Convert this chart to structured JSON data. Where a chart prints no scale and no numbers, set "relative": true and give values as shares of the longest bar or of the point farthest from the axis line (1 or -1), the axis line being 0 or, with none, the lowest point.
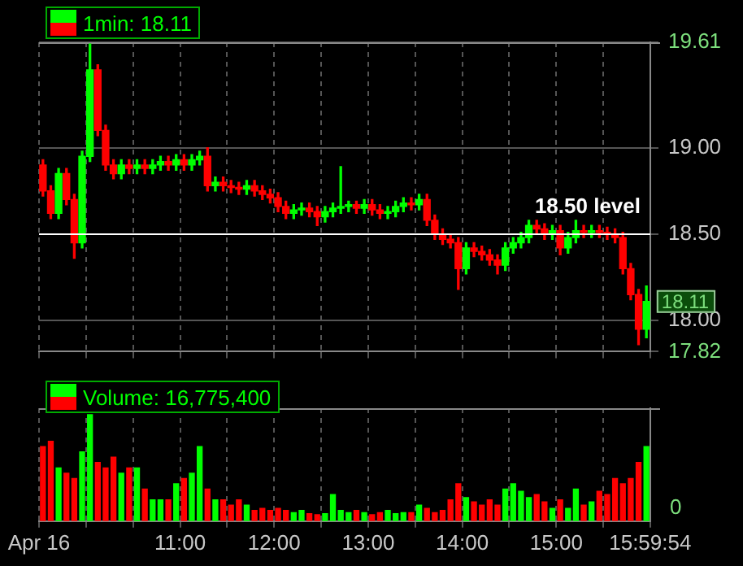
{
  "chart_data": [
    {
      "type": "candlestick",
      "title": "1min: 18.11",
      "x": [
        9.5417,
        9.625,
        9.7083,
        9.7917,
        9.875,
        9.9583,
        10.0417,
        10.125,
        10.2083,
        10.2917,
        10.375,
        10.4583,
        10.5417,
        10.625,
        10.7083,
        10.7917,
        10.875,
        10.9583,
        11.0417,
        11.125,
        11.2083,
        11.2917,
        11.375,
        11.4583,
        11.5417,
        11.625,
        11.7083,
        11.7917,
        11.875,
        11.9583,
        12.0417,
        12.125,
        12.2083,
        12.2917,
        12.375,
        12.4583,
        12.5417,
        12.625,
        12.7083,
        12.7917,
        12.875,
        12.9583,
        13.0417,
        13.125,
        13.2083,
        13.2917,
        13.375,
        13.4583,
        13.5417,
        13.625,
        13.7083,
        13.7917,
        13.875,
        13.9583,
        14.0417,
        14.125,
        14.2083,
        14.2917,
        14.375,
        14.4583,
        14.5417,
        14.625,
        14.7083,
        14.7917,
        14.875,
        14.9583,
        15.0417,
        15.125,
        15.2083,
        15.2917,
        15.375,
        15.4583,
        15.5417,
        15.625,
        15.7083,
        15.7917,
        15.875,
        15.9583
      ],
      "ohlc": [
        [
          18.9,
          18.93,
          18.72,
          18.75
        ],
        [
          18.75,
          18.78,
          18.59,
          18.62
        ],
        [
          18.62,
          18.88,
          18.59,
          18.85
        ],
        [
          18.85,
          18.88,
          18.67,
          18.7
        ],
        [
          18.7,
          18.73,
          18.36,
          18.45
        ],
        [
          18.45,
          18.98,
          18.42,
          18.95
        ],
        [
          18.95,
          19.6,
          18.92,
          19.45
        ],
        [
          19.45,
          19.48,
          19.07,
          19.1
        ],
        [
          19.1,
          19.13,
          18.87,
          18.9
        ],
        [
          18.9,
          18.93,
          18.82,
          18.85
        ],
        [
          18.85,
          18.93,
          18.82,
          18.9
        ],
        [
          18.9,
          18.93,
          18.85,
          18.88
        ],
        [
          18.88,
          18.93,
          18.85,
          18.9
        ],
        [
          18.9,
          18.93,
          18.85,
          18.88
        ],
        [
          18.88,
          18.93,
          18.85,
          18.9
        ],
        [
          18.9,
          18.95,
          18.87,
          18.92
        ],
        [
          18.92,
          18.95,
          18.87,
          18.9
        ],
        [
          18.9,
          18.96,
          18.87,
          18.93
        ],
        [
          18.93,
          18.96,
          18.87,
          18.9
        ],
        [
          18.9,
          18.96,
          18.87,
          18.93
        ],
        [
          18.93,
          18.98,
          18.9,
          18.95
        ],
        [
          18.95,
          19.0,
          18.75,
          18.78
        ],
        [
          18.78,
          18.83,
          18.75,
          18.8
        ],
        [
          18.8,
          18.83,
          18.75,
          18.78
        ],
        [
          18.78,
          18.81,
          18.74,
          18.77
        ],
        [
          18.77,
          18.8,
          18.73,
          18.76
        ],
        [
          18.76,
          18.81,
          18.73,
          18.78
        ],
        [
          18.78,
          18.81,
          18.72,
          18.75
        ],
        [
          18.75,
          18.78,
          18.7,
          18.73
        ],
        [
          18.73,
          18.76,
          18.68,
          18.71
        ],
        [
          18.71,
          18.74,
          18.63,
          18.66
        ],
        [
          18.66,
          18.69,
          18.59,
          18.62
        ],
        [
          18.62,
          18.67,
          18.59,
          18.64
        ],
        [
          18.64,
          18.68,
          18.61,
          18.65
        ],
        [
          18.65,
          18.68,
          18.6,
          18.63
        ],
        [
          18.63,
          18.66,
          18.55,
          18.6
        ],
        [
          18.6,
          18.66,
          18.57,
          18.63
        ],
        [
          18.63,
          18.68,
          18.6,
          18.65
        ],
        [
          18.65,
          18.89,
          18.62,
          18.66
        ],
        [
          18.66,
          18.69,
          18.63,
          18.67
        ],
        [
          18.67,
          18.69,
          18.62,
          18.65
        ],
        [
          18.65,
          18.7,
          18.62,
          18.67
        ],
        [
          18.67,
          18.7,
          18.61,
          18.64
        ],
        [
          18.64,
          18.67,
          18.59,
          18.62
        ],
        [
          18.62,
          18.66,
          18.59,
          18.63
        ],
        [
          18.63,
          18.69,
          18.6,
          18.66
        ],
        [
          18.66,
          18.71,
          18.63,
          18.68
        ],
        [
          18.68,
          18.71,
          18.64,
          18.67
        ],
        [
          18.67,
          18.73,
          18.64,
          18.7
        ],
        [
          18.7,
          18.73,
          18.55,
          18.58
        ],
        [
          18.58,
          18.61,
          18.47,
          18.5
        ],
        [
          18.5,
          18.53,
          18.44,
          18.47
        ],
        [
          18.47,
          18.5,
          18.42,
          18.45
        ],
        [
          18.45,
          18.48,
          18.18,
          18.3
        ],
        [
          18.3,
          18.45,
          18.27,
          18.42
        ],
        [
          18.42,
          18.45,
          18.37,
          18.4
        ],
        [
          18.4,
          18.43,
          18.35,
          18.38
        ],
        [
          18.38,
          18.41,
          18.32,
          18.35
        ],
        [
          18.35,
          18.38,
          18.27,
          18.32
        ],
        [
          18.32,
          18.45,
          18.29,
          18.42
        ],
        [
          18.42,
          18.48,
          18.39,
          18.45
        ],
        [
          18.45,
          18.51,
          18.42,
          18.48
        ],
        [
          18.48,
          18.58,
          18.45,
          18.55
        ],
        [
          18.55,
          18.58,
          18.5,
          18.53
        ],
        [
          18.53,
          18.56,
          18.47,
          18.5
        ],
        [
          18.5,
          18.55,
          18.47,
          18.52
        ],
        [
          18.52,
          18.55,
          18.38,
          18.42
        ],
        [
          18.42,
          18.51,
          18.39,
          18.48
        ],
        [
          18.48,
          18.58,
          18.45,
          18.52
        ],
        [
          18.52,
          18.55,
          18.48,
          18.51
        ],
        [
          18.51,
          18.55,
          18.48,
          18.52
        ],
        [
          18.52,
          18.55,
          18.48,
          18.51
        ],
        [
          18.51,
          18.54,
          18.47,
          18.5
        ],
        [
          18.5,
          18.53,
          18.45,
          18.48
        ],
        [
          18.48,
          18.51,
          18.27,
          18.3
        ],
        [
          18.3,
          18.33,
          18.12,
          18.15
        ],
        [
          18.15,
          18.18,
          17.86,
          17.95
        ],
        [
          17.95,
          18.2,
          17.9,
          18.11
        ]
      ],
      "colors": [
        "#ff0000",
        "#ff0000",
        "#00ff00",
        "#ff0000",
        "#ff0000",
        "#00ff00",
        "#00ff00",
        "#ff0000",
        "#ff0000",
        "#ff0000",
        "#00ff00",
        "#ff0000",
        "#00ff00",
        "#ff0000",
        "#00ff00",
        "#00ff00",
        "#ff0000",
        "#00ff00",
        "#ff0000",
        "#00ff00",
        "#00ff00",
        "#ff0000",
        "#00ff00",
        "#ff0000",
        "#ff0000",
        "#ff0000",
        "#00ff00",
        "#ff0000",
        "#ff0000",
        "#ff0000",
        "#ff0000",
        "#ff0000",
        "#00ff00",
        "#00ff00",
        "#ff0000",
        "#ff0000",
        "#00ff00",
        "#00ff00",
        "#00ff00",
        "#00ff00",
        "#ff0000",
        "#00ff00",
        "#ff0000",
        "#ff0000",
        "#00ff00",
        "#00ff00",
        "#00ff00",
        "#ff0000",
        "#00ff00",
        "#ff0000",
        "#ff0000",
        "#ff0000",
        "#ff0000",
        "#ff0000",
        "#00ff00",
        "#ff0000",
        "#ff0000",
        "#ff0000",
        "#ff0000",
        "#00ff00",
        "#00ff00",
        "#00ff00",
        "#00ff00",
        "#ff0000",
        "#ff0000",
        "#00ff00",
        "#ff0000",
        "#00ff00",
        "#00ff00",
        "#ff0000",
        "#00ff00",
        "#ff0000",
        "#ff0000",
        "#ff0000",
        "#ff0000",
        "#ff0000",
        "#ff0000",
        "#00ff00"
      ],
      "xlim": [
        9.5,
        16
      ],
      "xticks": [
        {
          "value": 9.5,
          "label": null
        },
        {
          "value": 10,
          "label": null
        },
        {
          "value": 10.5,
          "label": null
        },
        {
          "value": 11,
          "label": null
        },
        {
          "value": 11.5,
          "label": null
        },
        {
          "value": 12,
          "label": null
        },
        {
          "value": 12.5,
          "label": null
        },
        {
          "value": 13,
          "label": null
        },
        {
          "value": 13.5,
          "label": null
        },
        {
          "value": 14,
          "label": null
        },
        {
          "value": 14.5,
          "label": null
        },
        {
          "value": 15,
          "label": null
        },
        {
          "value": 15.5,
          "label": null
        },
        {
          "value": 15.9983,
          "label": null
        }
      ],
      "ylim": [
        17.82,
        19.61
      ],
      "yticks": [
        17.82,
        {
          "value": 18,
          "label": "18.00"
        },
        {
          "value": 18.5,
          "label": "18.50"
        },
        {
          "value": 19,
          "label": "19.00"
        },
        19.61
      ],
      "grid": true,
      "tick_labels": "y",
      "ref_lines": [
        {
          "axis": "y",
          "value": 18.5,
          "label": "18.50 level",
          "color": "#ffffff"
        }
      ],
      "annotations": [
        {
          "text": "18.11",
          "x": 15.9983,
          "y": 18.11
        }
      ]
    },
    {
      "type": "bar",
      "title": "Volume: 16,775,400",
      "relative": true,
      "x": [
        9.5417,
        9.625,
        9.7083,
        9.7917,
        9.875,
        9.9583,
        10.0417,
        10.125,
        10.2083,
        10.2917,
        10.375,
        10.4583,
        10.5417,
        10.625,
        10.7083,
        10.7917,
        10.875,
        10.9583,
        11.0417,
        11.125,
        11.2083,
        11.2917,
        11.375,
        11.4583,
        11.5417,
        11.625,
        11.7083,
        11.7917,
        11.875,
        11.9583,
        12.0417,
        12.125,
        12.2083,
        12.2917,
        12.375,
        12.4583,
        12.5417,
        12.625,
        12.7083,
        12.7917,
        12.875,
        12.9583,
        13.0417,
        13.125,
        13.2083,
        13.2917,
        13.375,
        13.4583,
        13.5417,
        13.625,
        13.7083,
        13.7917,
        13.875,
        13.9583,
        14.0417,
        14.125,
        14.2083,
        14.2917,
        14.375,
        14.4583,
        14.5417,
        14.625,
        14.7083,
        14.7917,
        14.875,
        14.9583,
        15.0417,
        15.125,
        15.2083,
        15.2917,
        15.375,
        15.4583,
        15.5417,
        15.625,
        15.7083,
        15.7917,
        15.875,
        15.9583
      ],
      "values": [
        0.7,
        0.75,
        0.5,
        0.45,
        0.4,
        0.65,
        1,
        0.55,
        0.5,
        0.6,
        0.45,
        0.5,
        0.5,
        0.3,
        0.2,
        0.2,
        0.2,
        0.35,
        0.4,
        0.45,
        0.7,
        0.3,
        0.2,
        0.2,
        0.15,
        0.2,
        0.15,
        0.1,
        0.12,
        0.1,
        0.12,
        0.1,
        0.08,
        0.1,
        0.07,
        0.06,
        0.07,
        0.25,
        0.1,
        0.08,
        0.1,
        0.08,
        0.06,
        0.08,
        0.1,
        0.07,
        0.08,
        0.08,
        0.15,
        0.12,
        0.08,
        0.1,
        0.2,
        0.35,
        0.22,
        0.18,
        0.15,
        0.2,
        0.15,
        0.3,
        0.35,
        0.28,
        0.22,
        0.25,
        0.18,
        0.12,
        0.2,
        0.12,
        0.3,
        0.15,
        0.18,
        0.28,
        0.25,
        0.4,
        0.35,
        0.4,
        0.55,
        0.7
      ],
      "colors": [
        "#ff0000",
        "#ff0000",
        "#00ff00",
        "#ff0000",
        "#ff0000",
        "#00ff00",
        "#00ff00",
        "#ff0000",
        "#ff0000",
        "#ff0000",
        "#00ff00",
        "#ff0000",
        "#00ff00",
        "#ff0000",
        "#00ff00",
        "#00ff00",
        "#ff0000",
        "#00ff00",
        "#ff0000",
        "#00ff00",
        "#00ff00",
        "#ff0000",
        "#00ff00",
        "#ff0000",
        "#ff0000",
        "#ff0000",
        "#00ff00",
        "#ff0000",
        "#ff0000",
        "#ff0000",
        "#ff0000",
        "#ff0000",
        "#00ff00",
        "#00ff00",
        "#ff0000",
        "#ff0000",
        "#00ff00",
        "#00ff00",
        "#00ff00",
        "#00ff00",
        "#ff0000",
        "#00ff00",
        "#ff0000",
        "#ff0000",
        "#00ff00",
        "#00ff00",
        "#00ff00",
        "#ff0000",
        "#00ff00",
        "#ff0000",
        "#ff0000",
        "#ff0000",
        "#ff0000",
        "#ff0000",
        "#00ff00",
        "#ff0000",
        "#ff0000",
        "#ff0000",
        "#ff0000",
        "#00ff00",
        "#00ff00",
        "#00ff00",
        "#00ff00",
        "#ff0000",
        "#ff0000",
        "#00ff00",
        "#ff0000",
        "#00ff00",
        "#00ff00",
        "#ff0000",
        "#00ff00",
        "#ff0000",
        "#ff0000",
        "#ff0000",
        "#ff0000",
        "#ff0000",
        "#ff0000",
        "#00ff00"
      ],
      "xlim": [
        9.5,
        16
      ],
      "xticks": [
        {
          "value": 9.5,
          "label": "Apr 16"
        },
        {
          "value": 10,
          "label": null
        },
        {
          "value": 10.5,
          "label": null
        },
        {
          "value": 11,
          "label": "11:00"
        },
        {
          "value": 11.5,
          "label": null
        },
        {
          "value": 12,
          "label": "12:00"
        },
        {
          "value": 12.5,
          "label": null
        },
        {
          "value": 13,
          "label": "13:00"
        },
        {
          "value": 13.5,
          "label": null
        },
        {
          "value": 14,
          "label": "14:00"
        },
        {
          "value": 14.5,
          "label": null
        },
        {
          "value": 15,
          "label": "15:00"
        },
        {
          "value": 15.5,
          "label": null
        },
        {
          "value": 15.9983,
          "label": "15:59:54"
        }
      ],
      "grid": "x",
      "tick_labels": "x",
      "annotations": [
        "0"
      ]
    }
  ]
}
